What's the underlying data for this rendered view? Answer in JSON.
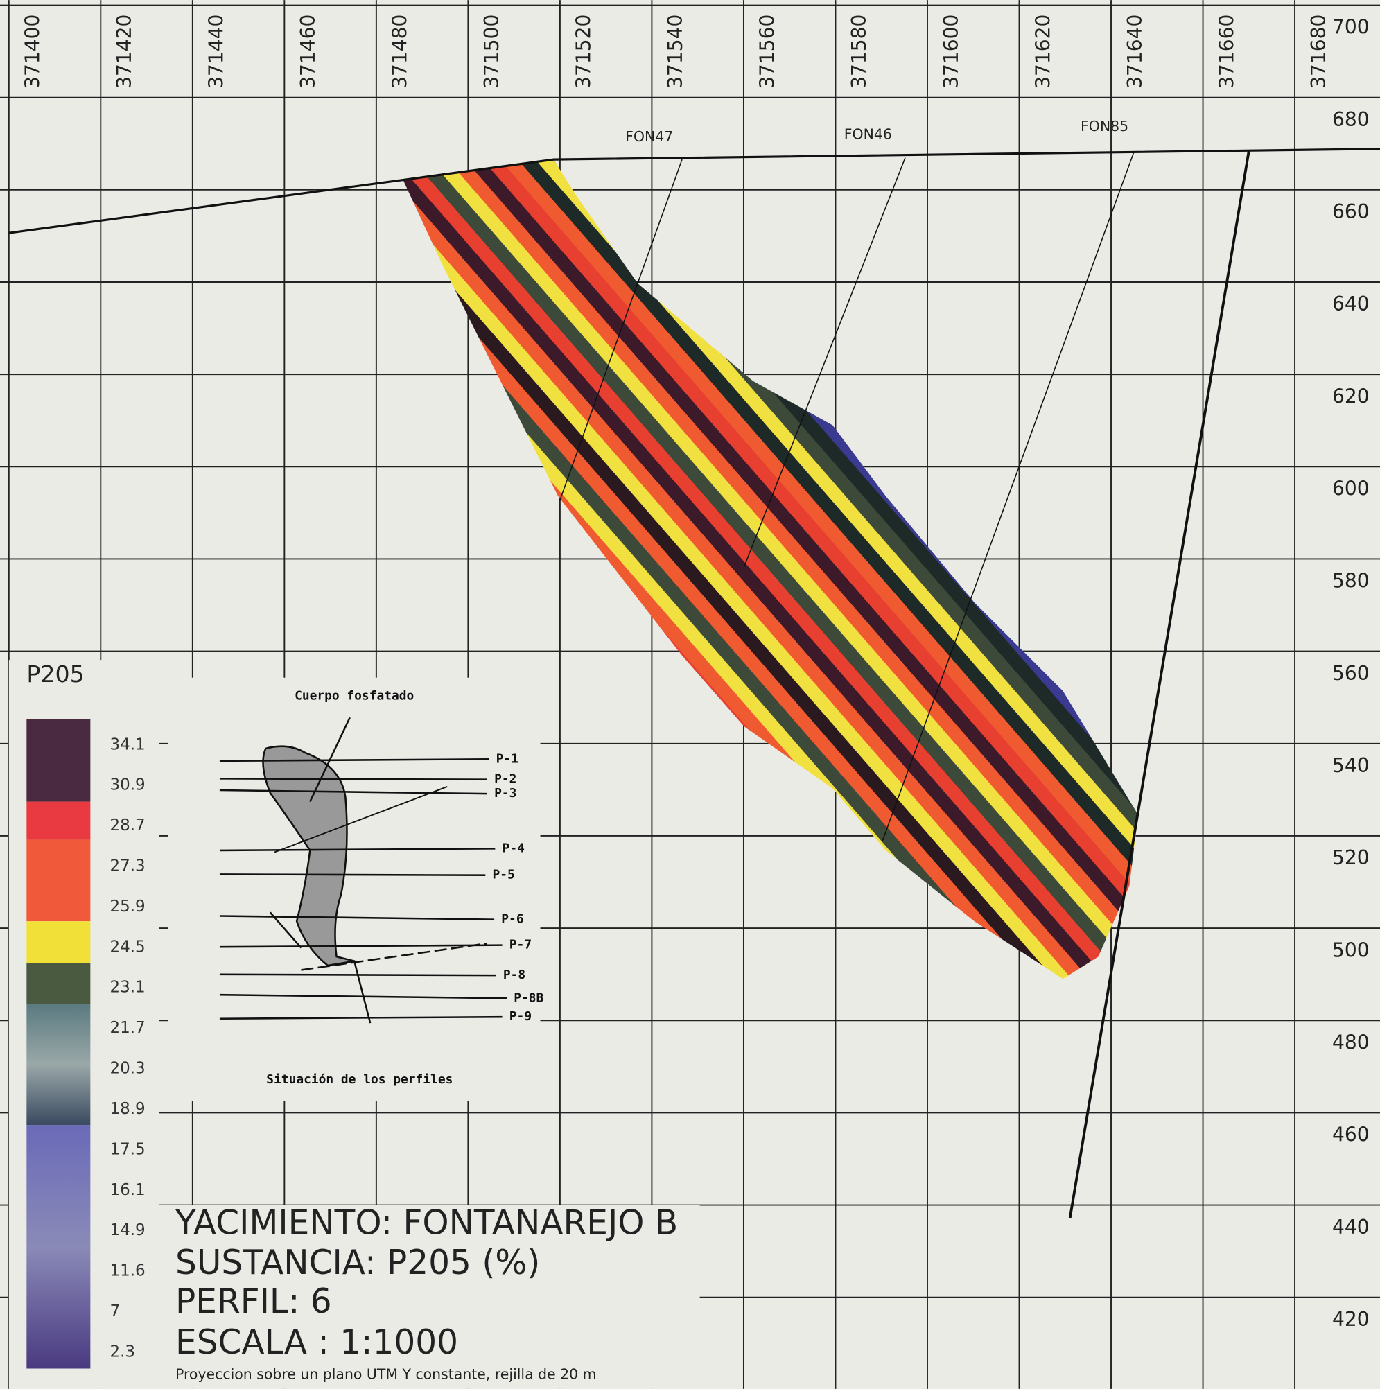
{
  "x_axis": {
    "ticks": [
      371400,
      371420,
      371440,
      371460,
      371480,
      371500,
      371520,
      371540,
      371560,
      371580,
      371600,
      371620,
      371640,
      371660,
      371680
    ]
  },
  "y_axis": {
    "ticks": [
      700,
      680,
      660,
      640,
      620,
      600,
      580,
      560,
      540,
      520,
      500,
      480,
      460,
      440,
      420
    ]
  },
  "drillholes": [
    "FON47",
    "FON46",
    "FON85"
  ],
  "legend": {
    "title": "P205",
    "labels": [
      "34.1",
      "30.9",
      "28.7",
      "27.3",
      "25.9",
      "24.5",
      "23.1",
      "21.7",
      "20.3",
      "18.9",
      "17.5",
      "16.1",
      "14.9",
      "11.6",
      "7",
      "2.3"
    ]
  },
  "inset": {
    "title": "Cuerpo fosfatado",
    "caption": "Situación de los perfiles",
    "profiles": [
      "P-1",
      "P-2",
      "P-3",
      "P-4",
      "P-5",
      "P-6",
      "P-7",
      "P-8",
      "P-8B",
      "P-9"
    ]
  },
  "info": {
    "lines": [
      "YACIMIENTO: FONTANAREJO B",
      "SUSTANCIA: P205 (%)",
      "PERFIL: 6",
      "ESCALA : 1:1000",
      "Proyeccion sobre un plano UTM Y constante, rejilla de 20 m"
    ]
  }
}
